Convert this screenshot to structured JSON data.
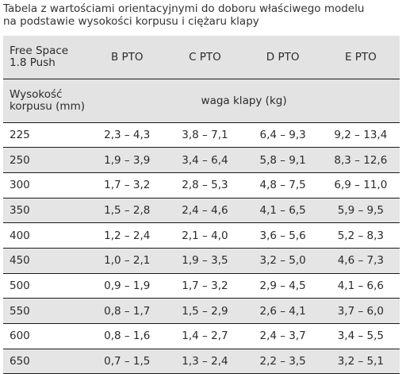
{
  "caption": {
    "line1": "Tabela z wartościami orientacyjnymi do doboru właściwego modelu",
    "line2": "na podstawie wysokości korpusu i ciężaru klapy"
  },
  "table": {
    "model_header_line1": "Free Space",
    "model_header_line2": "1.8 Push",
    "columns": [
      "B PTO",
      "C PTO",
      "D PTO",
      "E PTO"
    ],
    "height_header_line1": "Wysokość",
    "height_header_line2": "korpusu (mm)",
    "weight_header": "waga klapy (kg)",
    "rows": [
      {
        "height": "225",
        "values": [
          "2,3 – 4,3",
          "3,8 – 7,1",
          "6,4 – 9,3",
          "9,2 – 13,4"
        ]
      },
      {
        "height": "250",
        "values": [
          "1,9 – 3,9",
          "3,4 – 6,4",
          "5,8 – 9,1",
          "8,3 – 12,6"
        ]
      },
      {
        "height": "300",
        "values": [
          "1,7 – 3,2",
          "2,8 – 5,3",
          "4,8 – 7,5",
          "6,9 – 11,0"
        ]
      },
      {
        "height": "350",
        "values": [
          "1,5 – 2,8",
          "2,4 – 4,6",
          "4,1 – 6,5",
          "5,9 – 9,5"
        ]
      },
      {
        "height": "400",
        "values": [
          "1,2 – 2,4",
          "2,1 – 4,0",
          "3,6 – 5,6",
          "5,2 – 8,3"
        ]
      },
      {
        "height": "450",
        "values": [
          "1,0 – 2,1",
          "1,9 – 3,5",
          "3,2 – 5,0",
          "4,6 – 7,3"
        ]
      },
      {
        "height": "500",
        "values": [
          "0,9 – 1,9",
          "1,7 – 3,2",
          "2,9 – 4,5",
          "4,1 – 6,6"
        ]
      },
      {
        "height": "550",
        "values": [
          "0,8 – 1,7",
          "1,5 – 2,9",
          "2,6 – 4,1",
          "3,7 – 6,0"
        ]
      },
      {
        "height": "600",
        "values": [
          "0,8 – 1,6",
          "1,4 – 2,7",
          "2,4 – 3,7",
          "3,4 – 5,5"
        ]
      },
      {
        "height": "650",
        "values": [
          "0,7 – 1,5",
          "1,3 – 2,4",
          "2,2 – 3,5",
          "3,2 – 5,1"
        ]
      }
    ],
    "colors": {
      "header_bg": "#e3e3e3",
      "alt_row_bg": "#e5e5e5",
      "row_border": "#1a1a1a",
      "text": "#2b2b2b"
    }
  }
}
